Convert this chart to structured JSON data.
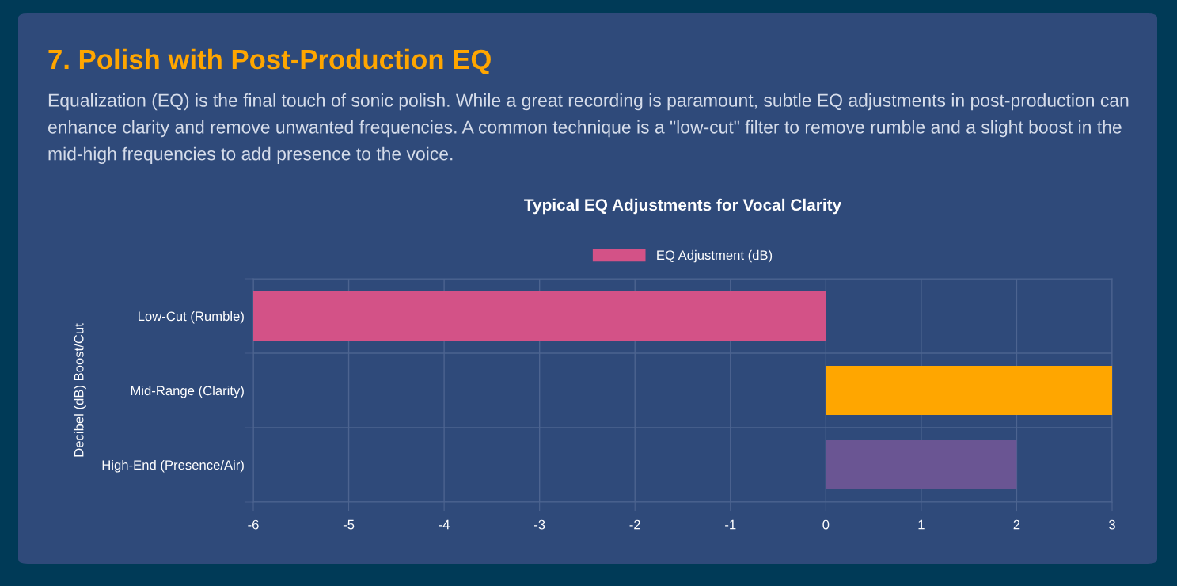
{
  "chart_data": {
    "type": "bar",
    "orientation": "horizontal",
    "title": "Typical EQ Adjustments for Vocal Clarity",
    "annotations": [
      "7. Polish with Post-Production EQ",
      "Equalization (EQ) is the final touch of sonic polish. While a great recording is paramount, subtle EQ adjustments in post-production can enhance clarity and remove unwanted frequencies. A common technique is a \"low-cut\" filter to remove rumble and a slight boost in the mid-high frequencies to add presence to the voice."
    ],
    "ylabel": "Decibel (dB) Boost/Cut",
    "categories": [
      "Low-Cut (Rumble)",
      "Mid-Range (Clarity)",
      "High-End (Presence/Air)"
    ],
    "series": [
      {
        "name": "EQ Adjustment (dB)",
        "values": [
          -6,
          3,
          2
        ],
        "colors": [
          "#d35287",
          "#ffa600",
          "#6a5593"
        ]
      }
    ],
    "xlim": [
      -6,
      3
    ],
    "xticks": [
      -6,
      -5,
      -4,
      -3,
      -2,
      -1,
      0,
      1,
      2,
      3
    ],
    "grid": true,
    "legend": "top"
  }
}
